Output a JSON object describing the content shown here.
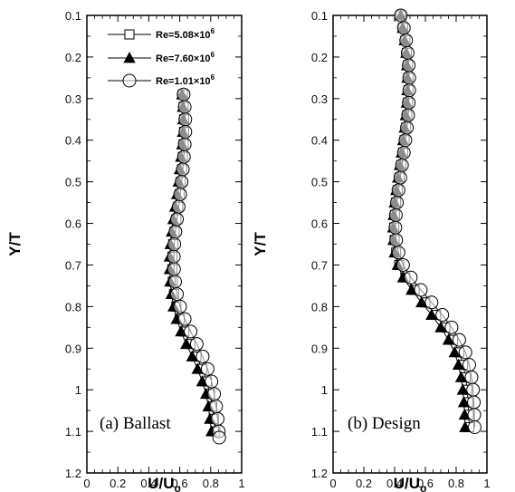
{
  "chart_data": [
    {
      "type": "line",
      "panel_label": "(a) Ballast",
      "xlabel": "U/U",
      "xlabel_sub": "o",
      "ylabel": "Y/T",
      "xlim": [
        0,
        1
      ],
      "ylim": [
        0.1,
        1.2
      ],
      "y_inverted": true,
      "xticks": [
        "0",
        "0.2",
        "0.4",
        "0.6",
        "0.8",
        "1"
      ],
      "yticks": [
        "0.1",
        "0.2",
        "0.3",
        "0.4",
        "0.5",
        "0.6",
        "0.7",
        "0.8",
        "0.9",
        "1",
        "1.1",
        "1.2"
      ],
      "grid": false,
      "legend": {
        "placement": "top-right",
        "entries": [
          {
            "label": "Re=5.08×10",
            "exp": "6",
            "marker": "square-open"
          },
          {
            "label": "Re=7.60×10",
            "exp": "6",
            "marker": "triangle-filled"
          },
          {
            "label": "Re=1.01×10",
            "exp": "6",
            "marker": "circle-open"
          }
        ]
      },
      "series": [
        {
          "marker": "square-open",
          "points": [
            [
              0.62,
              0.29
            ],
            [
              0.625,
              0.32
            ],
            [
              0.628,
              0.35
            ],
            [
              0.628,
              0.38
            ],
            [
              0.625,
              0.41
            ],
            [
              0.62,
              0.44
            ],
            [
              0.615,
              0.47
            ],
            [
              0.607,
              0.5
            ],
            [
              0.6,
              0.53
            ],
            [
              0.59,
              0.56
            ],
            [
              0.578,
              0.59
            ],
            [
              0.567,
              0.62
            ],
            [
              0.558,
              0.65
            ],
            [
              0.553,
              0.68
            ],
            [
              0.552,
              0.71
            ],
            [
              0.555,
              0.74
            ],
            [
              0.563,
              0.77
            ],
            [
              0.578,
              0.8
            ],
            [
              0.6,
              0.83
            ],
            [
              0.63,
              0.86
            ],
            [
              0.668,
              0.89
            ],
            [
              0.708,
              0.92
            ],
            [
              0.745,
              0.95
            ],
            [
              0.775,
              0.98
            ],
            [
              0.795,
              1.01
            ],
            [
              0.81,
              1.04
            ],
            [
              0.82,
              1.07
            ],
            [
              0.83,
              1.1
            ]
          ]
        },
        {
          "marker": "triangle-filled",
          "points": [
            [
              0.615,
              0.29
            ],
            [
              0.62,
              0.32
            ],
            [
              0.622,
              0.35
            ],
            [
              0.62,
              0.38
            ],
            [
              0.615,
              0.41
            ],
            [
              0.608,
              0.44
            ],
            [
              0.6,
              0.47
            ],
            [
              0.592,
              0.5
            ],
            [
              0.582,
              0.53
            ],
            [
              0.57,
              0.56
            ],
            [
              0.558,
              0.59
            ],
            [
              0.548,
              0.62
            ],
            [
              0.54,
              0.65
            ],
            [
              0.535,
              0.68
            ],
            [
              0.535,
              0.71
            ],
            [
              0.538,
              0.74
            ],
            [
              0.546,
              0.77
            ],
            [
              0.56,
              0.8
            ],
            [
              0.58,
              0.83
            ],
            [
              0.608,
              0.86
            ],
            [
              0.642,
              0.89
            ],
            [
              0.68,
              0.92
            ],
            [
              0.715,
              0.95
            ],
            [
              0.745,
              0.98
            ],
            [
              0.77,
              1.01
            ],
            [
              0.785,
              1.04
            ],
            [
              0.795,
              1.07
            ],
            [
              0.805,
              1.1
            ]
          ]
        },
        {
          "marker": "circle-open",
          "points": [
            [
              0.625,
              0.29
            ],
            [
              0.632,
              0.32
            ],
            [
              0.636,
              0.35
            ],
            [
              0.636,
              0.38
            ],
            [
              0.632,
              0.41
            ],
            [
              0.627,
              0.44
            ],
            [
              0.62,
              0.47
            ],
            [
              0.612,
              0.5
            ],
            [
              0.603,
              0.53
            ],
            [
              0.593,
              0.56
            ],
            [
              0.582,
              0.59
            ],
            [
              0.572,
              0.62
            ],
            [
              0.565,
              0.65
            ],
            [
              0.562,
              0.68
            ],
            [
              0.563,
              0.71
            ],
            [
              0.57,
              0.74
            ],
            [
              0.582,
              0.77
            ],
            [
              0.602,
              0.8
            ],
            [
              0.632,
              0.83
            ],
            [
              0.67,
              0.86
            ],
            [
              0.71,
              0.89
            ],
            [
              0.748,
              0.92
            ],
            [
              0.78,
              0.95
            ],
            [
              0.805,
              0.98
            ],
            [
              0.822,
              1.01
            ],
            [
              0.835,
              1.04
            ],
            [
              0.845,
              1.07
            ],
            [
              0.852,
              1.1
            ],
            [
              0.855,
              1.115
            ]
          ]
        }
      ]
    },
    {
      "type": "line",
      "panel_label": "(b) Design",
      "xlabel": "U/U",
      "xlabel_sub": "o",
      "ylabel": "Y/T",
      "xlim": [
        0,
        1
      ],
      "ylim": [
        0.1,
        1.2
      ],
      "y_inverted": true,
      "xticks": [
        "0",
        "0.2",
        "0.4",
        "0.6",
        "0.8",
        "1"
      ],
      "yticks": [
        "0.1",
        "0.2",
        "0.3",
        "0.4",
        "0.5",
        "0.6",
        "0.7",
        "0.8",
        "0.9",
        "1",
        "1.1",
        "1.2"
      ],
      "grid": false,
      "series": [
        {
          "marker": "square-open",
          "points": [
            [
              0.44,
              0.1
            ],
            [
              0.455,
              0.13
            ],
            [
              0.47,
              0.16
            ],
            [
              0.48,
              0.19
            ],
            [
              0.487,
              0.22
            ],
            [
              0.49,
              0.25
            ],
            [
              0.49,
              0.28
            ],
            [
              0.487,
              0.31
            ],
            [
              0.482,
              0.34
            ],
            [
              0.475,
              0.37
            ],
            [
              0.465,
              0.4
            ],
            [
              0.455,
              0.43
            ],
            [
              0.443,
              0.46
            ],
            [
              0.432,
              0.49
            ],
            [
              0.42,
              0.52
            ],
            [
              0.41,
              0.55
            ],
            [
              0.402,
              0.58
            ],
            [
              0.398,
              0.61
            ],
            [
              0.4,
              0.64
            ],
            [
              0.41,
              0.67
            ],
            [
              0.43,
              0.7
            ],
            [
              0.47,
              0.73
            ],
            [
              0.53,
              0.76
            ],
            [
              0.6,
              0.79
            ],
            [
              0.67,
              0.82
            ],
            [
              0.73,
              0.85
            ],
            [
              0.78,
              0.88
            ],
            [
              0.82,
              0.91
            ],
            [
              0.845,
              0.94
            ],
            [
              0.862,
              0.97
            ],
            [
              0.872,
              1.0
            ],
            [
              0.878,
              1.03
            ],
            [
              0.882,
              1.06
            ],
            [
              0.885,
              1.09
            ]
          ]
        },
        {
          "marker": "triangle-filled",
          "points": [
            [
              0.44,
              0.1
            ],
            [
              0.452,
              0.13
            ],
            [
              0.465,
              0.16
            ],
            [
              0.475,
              0.19
            ],
            [
              0.48,
              0.22
            ],
            [
              0.483,
              0.25
            ],
            [
              0.482,
              0.28
            ],
            [
              0.478,
              0.31
            ],
            [
              0.472,
              0.34
            ],
            [
              0.465,
              0.37
            ],
            [
              0.455,
              0.4
            ],
            [
              0.445,
              0.43
            ],
            [
              0.433,
              0.46
            ],
            [
              0.422,
              0.49
            ],
            [
              0.41,
              0.52
            ],
            [
              0.4,
              0.55
            ],
            [
              0.393,
              0.58
            ],
            [
              0.39,
              0.61
            ],
            [
              0.392,
              0.64
            ],
            [
              0.4,
              0.67
            ],
            [
              0.42,
              0.7
            ],
            [
              0.455,
              0.73
            ],
            [
              0.51,
              0.76
            ],
            [
              0.575,
              0.79
            ],
            [
              0.64,
              0.82
            ],
            [
              0.7,
              0.85
            ],
            [
              0.75,
              0.88
            ],
            [
              0.79,
              0.91
            ],
            [
              0.815,
              0.94
            ],
            [
              0.832,
              0.97
            ],
            [
              0.843,
              1.0
            ],
            [
              0.85,
              1.03
            ],
            [
              0.855,
              1.06
            ],
            [
              0.858,
              1.09
            ]
          ]
        },
        {
          "marker": "circle-open",
          "points": [
            [
              0.44,
              0.1
            ],
            [
              0.46,
              0.13
            ],
            [
              0.475,
              0.16
            ],
            [
              0.485,
              0.19
            ],
            [
              0.492,
              0.22
            ],
            [
              0.495,
              0.25
            ],
            [
              0.495,
              0.28
            ],
            [
              0.492,
              0.31
            ],
            [
              0.488,
              0.34
            ],
            [
              0.48,
              0.37
            ],
            [
              0.47,
              0.4
            ],
            [
              0.46,
              0.43
            ],
            [
              0.448,
              0.46
            ],
            [
              0.437,
              0.49
            ],
            [
              0.425,
              0.52
            ],
            [
              0.415,
              0.55
            ],
            [
              0.408,
              0.58
            ],
            [
              0.405,
              0.61
            ],
            [
              0.41,
              0.64
            ],
            [
              0.425,
              0.67
            ],
            [
              0.455,
              0.7
            ],
            [
              0.505,
              0.73
            ],
            [
              0.57,
              0.76
            ],
            [
              0.64,
              0.79
            ],
            [
              0.71,
              0.82
            ],
            [
              0.77,
              0.85
            ],
            [
              0.82,
              0.88
            ],
            [
              0.86,
              0.91
            ],
            [
              0.885,
              0.94
            ],
            [
              0.9,
              0.97
            ],
            [
              0.91,
              1.0
            ],
            [
              0.915,
              1.03
            ],
            [
              0.918,
              1.06
            ],
            [
              0.92,
              1.09
            ]
          ]
        }
      ]
    }
  ]
}
